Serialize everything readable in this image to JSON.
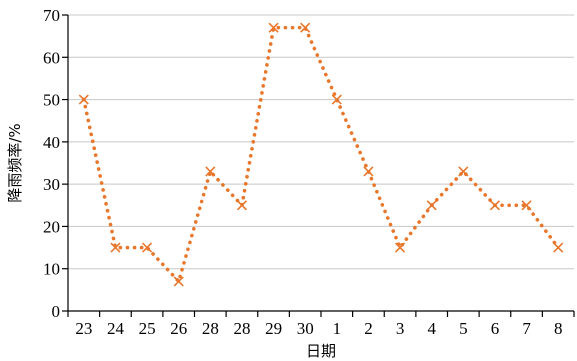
{
  "chart_data": {
    "type": "line",
    "xlabel": "日期",
    "ylabel": "降雨频率/%",
    "ylim": [
      0,
      70
    ],
    "yticks": [
      0,
      10,
      20,
      30,
      40,
      50,
      60,
      70
    ],
    "categories": [
      "23",
      "24",
      "25",
      "26",
      "28",
      "28",
      "29",
      "30",
      "1",
      "2",
      "3",
      "4",
      "5",
      "6",
      "7",
      "8"
    ],
    "series": [
      {
        "values": [
          50,
          15,
          15,
          7,
          33,
          25,
          67,
          67,
          50,
          33,
          15,
          25,
          33,
          25,
          25,
          15
        ],
        "color": "#e8762b",
        "line_style": "dotted",
        "marker": "x"
      }
    ],
    "grid": true
  }
}
